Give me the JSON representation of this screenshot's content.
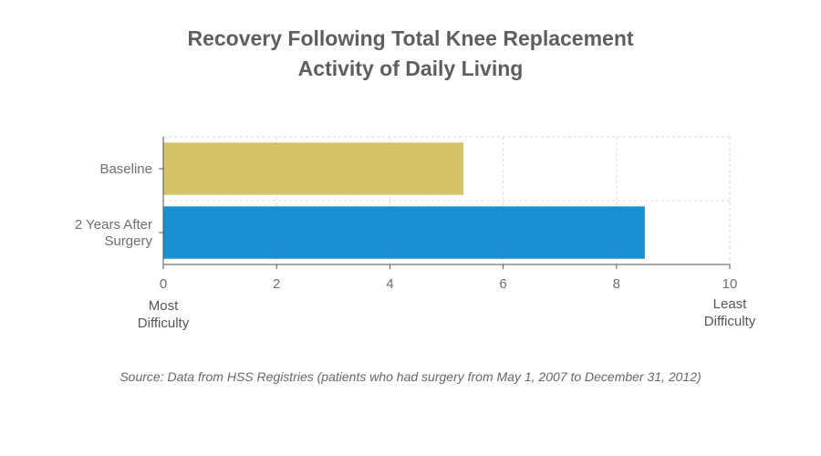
{
  "chart_data": {
    "type": "bar",
    "orientation": "horizontal",
    "title": [
      "Recovery Following Total Knee Replacement",
      "Activity of Daily Living"
    ],
    "categories": [
      "Baseline",
      "2 Years After Surgery"
    ],
    "category_lines": [
      [
        "Baseline"
      ],
      [
        "2 Years After",
        "Surgery"
      ]
    ],
    "values": [
      5.3,
      8.5
    ],
    "colors": [
      "#d4c36a",
      "#1a8fcf"
    ],
    "xlim": [
      0,
      10
    ],
    "xticks": [
      "0",
      "2",
      "4",
      "6",
      "8",
      "10"
    ],
    "x_end_labels": {
      "min": [
        "Most",
        "Difficulty"
      ],
      "max": [
        "Least",
        "Difficulty"
      ]
    },
    "grid": true,
    "source": "Source: Data from HSS Registries (patients who had surgery from May 1, 2007 to December 31, 2012)"
  }
}
